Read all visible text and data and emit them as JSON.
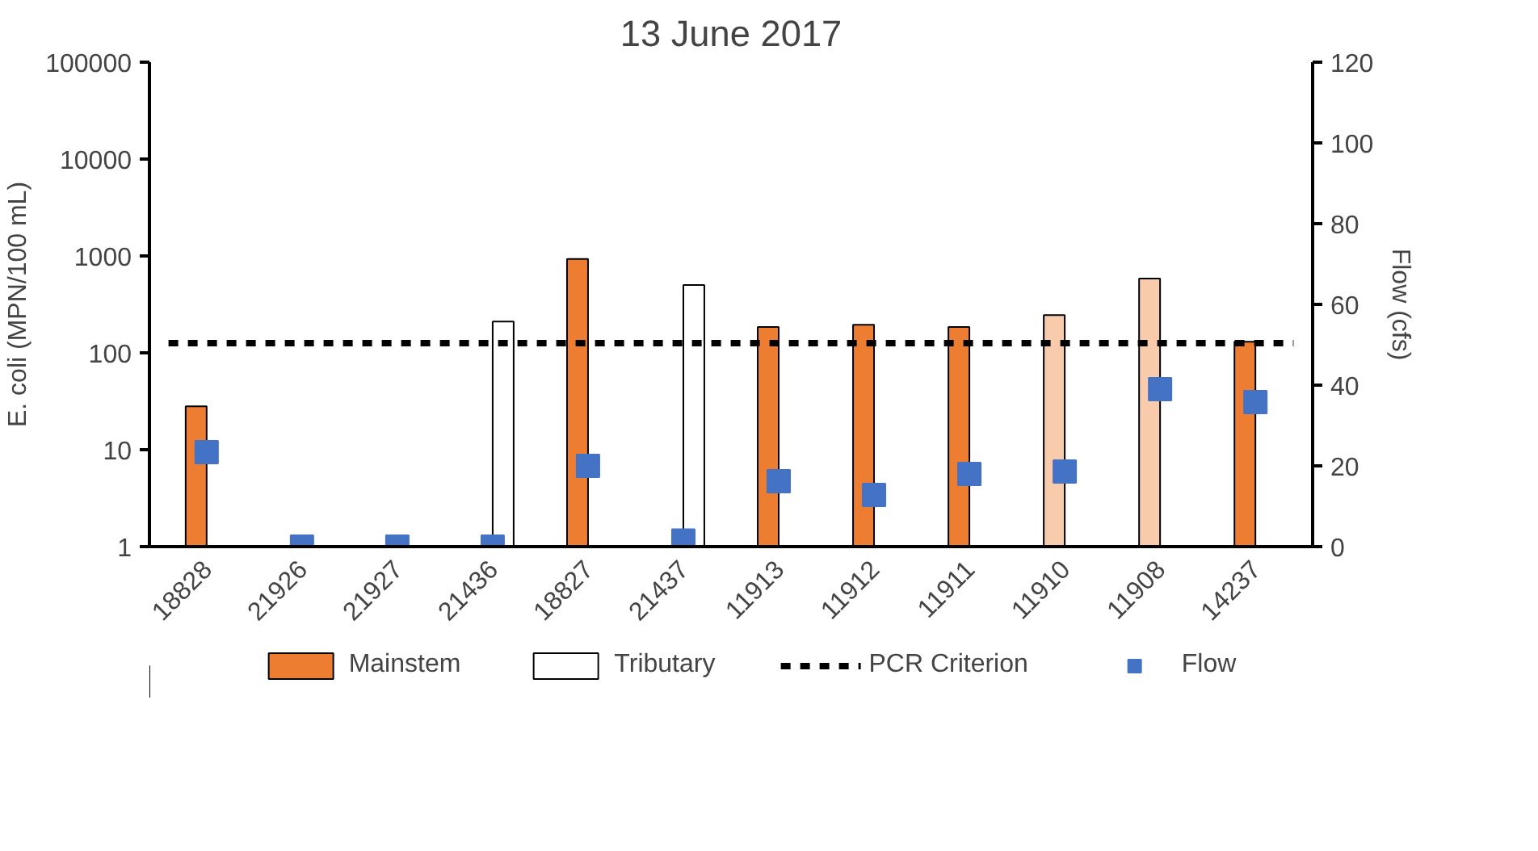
{
  "chart_data": {
    "type": "bar",
    "title": "13 June 2017",
    "ylabel": "E. coli (MPN/100 mL)",
    "y2label": "Flow (cfs)",
    "categories": [
      "18828",
      "21926",
      "21927",
      "21436",
      "18827",
      "21437",
      "11913",
      "11912",
      "11911",
      "11910",
      "11908",
      "14237"
    ],
    "series": [
      {
        "name": "Mainstem",
        "color": "#ed7d31",
        "colors": [
          "#ed7d31",
          null,
          null,
          null,
          "#ed7d31",
          null,
          "#ed7d31",
          "#ed7d31",
          "#ed7d31",
          "#f8cbad",
          "#f8cbad",
          "#ed7d31"
        ],
        "values": [
          28,
          null,
          null,
          null,
          930,
          null,
          185,
          195,
          185,
          245,
          585,
          130
        ]
      },
      {
        "name": "Tributary",
        "color": "#ffffff",
        "values": [
          null,
          null,
          null,
          210,
          null,
          500,
          null,
          null,
          null,
          null,
          null,
          null
        ]
      },
      {
        "name": "Flow",
        "type": "scatter",
        "axis": "y2",
        "color": "#4472c4",
        "marker": "square",
        "values": [
          23.4,
          0,
          0,
          0,
          20,
          1.5,
          16.2,
          12.8,
          18,
          18.6,
          39,
          35.8
        ]
      }
    ],
    "ref_lines": [
      {
        "axis": "y",
        "value": 126,
        "label": "PCR Criterion",
        "color": "#000000",
        "line_style": "dashed"
      }
    ],
    "log": "y",
    "ylim": [
      1,
      100000
    ],
    "yticks": [
      1,
      10,
      100,
      1000,
      10000,
      100000
    ],
    "y2lim": [
      0,
      120
    ],
    "y2ticks": [
      0,
      20,
      40,
      60,
      80,
      100,
      120
    ],
    "grid": false,
    "legend": "bottom"
  }
}
